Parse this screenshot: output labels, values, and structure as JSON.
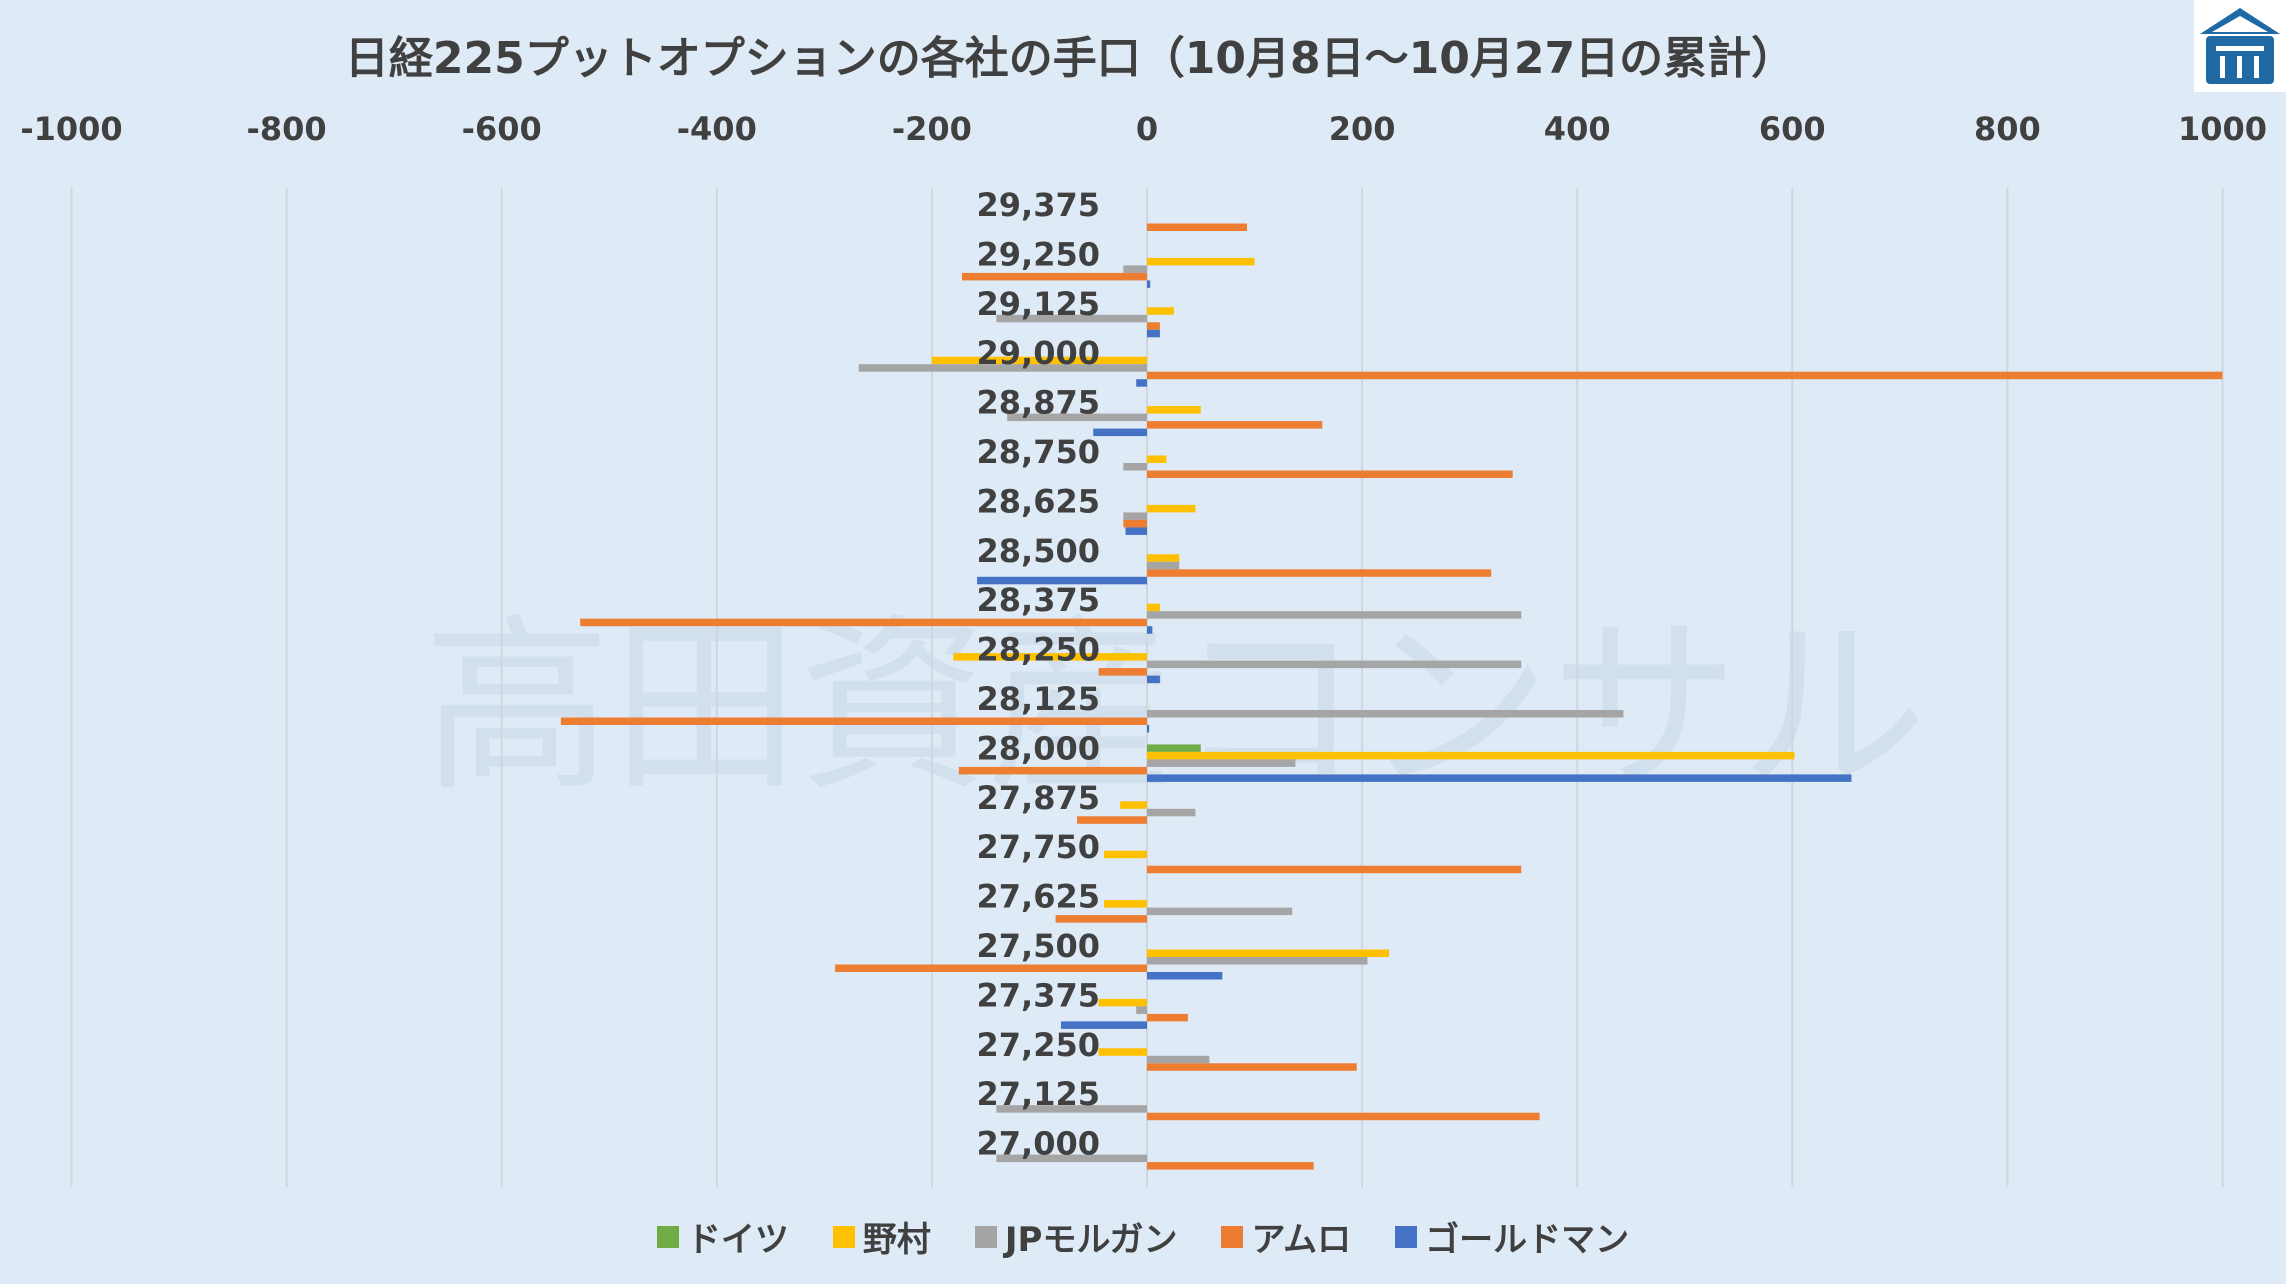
{
  "chart_data": {
    "type": "bar",
    "orientation": "horizontal",
    "title": "日経225プットオプションの各社の手口（10月8日～10月27日の累計）",
    "xlim": [
      -1000,
      1000
    ],
    "xticks": [
      "-1000",
      "-800",
      "-600",
      "-400",
      "-200",
      "0",
      "200",
      "400",
      "600",
      "800",
      "1000"
    ],
    "xtick_values": [
      -1000,
      -800,
      -600,
      -400,
      -200,
      0,
      200,
      400,
      600,
      800,
      1000
    ],
    "grid": "vertical",
    "legend_position": "bottom",
    "watermark": "高田資産コンサル",
    "categories": [
      "29,375",
      "29,250",
      "29,125",
      "29,000",
      "28,875",
      "28,750",
      "28,625",
      "28,500",
      "28,375",
      "28,250",
      "28,125",
      "28,000",
      "27,875",
      "27,750",
      "27,625",
      "27,500",
      "27,375",
      "27,250",
      "27,125",
      "27,000"
    ],
    "series": [
      {
        "name": "ドイツ",
        "color": "#70ad47",
        "values": [
          0,
          0,
          0,
          0,
          0,
          0,
          0,
          0,
          0,
          0,
          0,
          50,
          0,
          0,
          0,
          0,
          0,
          0,
          0,
          0
        ]
      },
      {
        "name": "野村",
        "color": "#ffc000",
        "values": [
          0,
          100,
          25,
          -200,
          50,
          18,
          45,
          30,
          12,
          -180,
          0,
          602,
          -25,
          -40,
          -40,
          225,
          -45,
          -45,
          0,
          0
        ]
      },
      {
        "name": "JPモルガン",
        "color": "#a5a5a5",
        "values": [
          0,
          -22,
          -140,
          -268,
          -130,
          -22,
          -22,
          30,
          348,
          348,
          443,
          138,
          45,
          0,
          135,
          205,
          -10,
          58,
          -140,
          -140
        ]
      },
      {
        "name": "アムロ",
        "color": "#ed7d31",
        "values": [
          93,
          -172,
          12,
          1000,
          163,
          340,
          -22,
          320,
          -527,
          -45,
          -545,
          -175,
          -65,
          348,
          -85,
          -290,
          38,
          195,
          365,
          155
        ]
      },
      {
        "name": "ゴールドマン",
        "color": "#4472c4",
        "values": [
          0,
          3,
          12,
          -10,
          -50,
          0,
          -20,
          -158,
          5,
          12,
          2,
          655,
          0,
          0,
          0,
          70,
          -80,
          0,
          0,
          0
        ]
      }
    ]
  }
}
